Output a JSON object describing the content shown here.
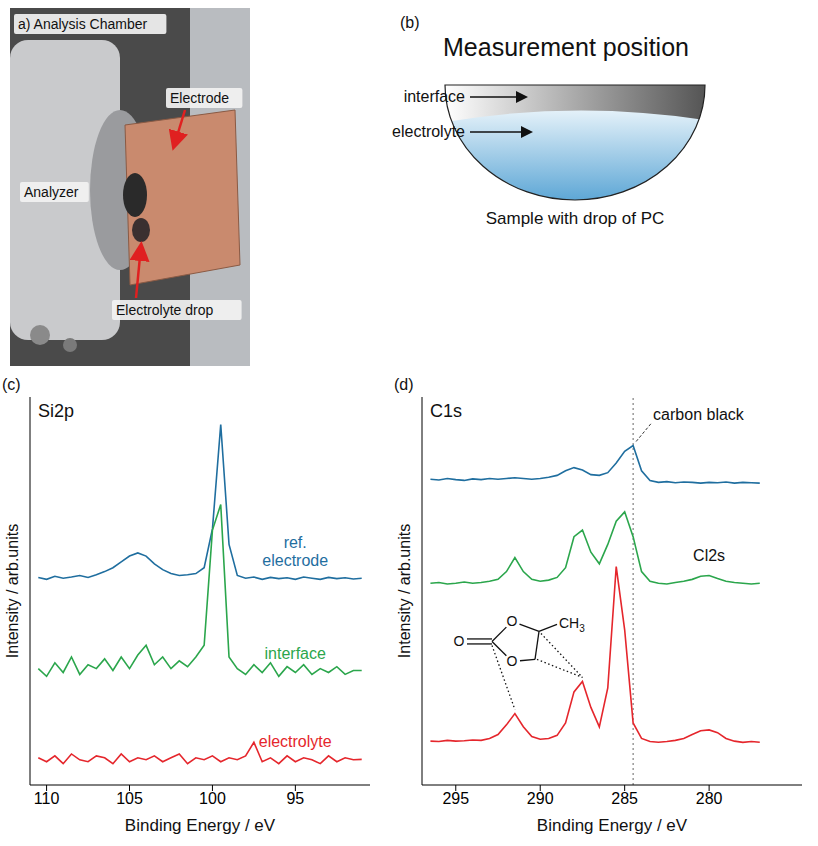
{
  "panel_a": {
    "title": "a) Analysis Chamber",
    "labels": {
      "electrode": "Electrode",
      "analyzer": "Analyzer",
      "electrolyte_drop": "Electrolyte drop"
    }
  },
  "panel_b": {
    "letter": "(b)",
    "title": "Measurement position",
    "labels": [
      "interface",
      "electrolyte"
    ],
    "caption": "Sample with drop of PC"
  },
  "chart_data": [
    {
      "panel": "(c)",
      "type": "line",
      "title": "Si2p",
      "x_label": "Binding Energy / eV",
      "y_label": "Intensity / arb.units",
      "tick_labels": "x",
      "xlim": [
        111,
        90.5
      ],
      "xticks": [
        110,
        105,
        100,
        95
      ],
      "ylim": [
        0,
        10
      ],
      "x": [
        110.5,
        110,
        109.5,
        109,
        108.5,
        108,
        107.5,
        107,
        106.5,
        106,
        105.5,
        105,
        104.5,
        104,
        103.5,
        103,
        102.5,
        102,
        101.5,
        101,
        100.5,
        100,
        99.5,
        99,
        98.5,
        98,
        97.5,
        97,
        96.5,
        96,
        95.5,
        95,
        94.5,
        94,
        93.5,
        93,
        92.5,
        92,
        91.5,
        91
      ],
      "series": [
        {
          "name": "ref. electrode",
          "color": "#1f6e9f",
          "values": [
            5.35,
            5.3,
            5.38,
            5.33,
            5.36,
            5.4,
            5.35,
            5.42,
            5.5,
            5.6,
            5.75,
            5.9,
            5.98,
            5.9,
            5.7,
            5.55,
            5.45,
            5.4,
            5.42,
            5.45,
            5.6,
            6.6,
            9.29,
            6.2,
            5.4,
            5.33,
            5.36,
            5.3,
            5.35,
            5.32,
            5.34,
            5.3,
            5.36,
            5.33,
            5.3,
            5.35,
            5.32,
            5.34,
            5.31,
            5.33
          ]
        },
        {
          "name": "interface",
          "color": "#2ba64c",
          "values": [
            3.0,
            2.8,
            3.15,
            2.9,
            3.3,
            2.85,
            3.1,
            3.0,
            3.25,
            2.95,
            3.3,
            3.0,
            3.35,
            3.6,
            3.1,
            3.3,
            3.0,
            3.2,
            3.05,
            3.3,
            3.6,
            6.57,
            7.23,
            3.3,
            3.0,
            2.85,
            3.1,
            2.9,
            3.15,
            2.8,
            3.05,
            2.9,
            3.1,
            2.85,
            3.0,
            2.9,
            3.05,
            2.85,
            2.95,
            2.95
          ]
        },
        {
          "name": "electrolyte",
          "color": "#e5262c",
          "values": [
            0.7,
            0.6,
            0.75,
            0.55,
            0.8,
            0.65,
            0.6,
            0.75,
            0.7,
            0.55,
            0.8,
            0.6,
            0.7,
            0.65,
            0.75,
            0.6,
            0.7,
            0.8,
            0.55,
            0.7,
            0.65,
            0.75,
            0.6,
            0.7,
            0.65,
            0.75,
            1.1,
            0.6,
            0.7,
            0.55,
            0.75,
            0.6,
            0.7,
            0.65,
            0.55,
            0.75,
            0.6,
            0.7,
            0.65,
            0.66
          ]
        }
      ]
    },
    {
      "panel": "(d)",
      "type": "line",
      "title": "C1s",
      "x_label": "Binding Energy / eV",
      "y_label": "Intensity / arb.units",
      "tick_labels": "x",
      "xlim": [
        297,
        274.5
      ],
      "xticks": [
        295,
        290,
        285,
        280
      ],
      "ylim": [
        0,
        10
      ],
      "reference_x": 284.5,
      "reference_label": "carbon black",
      "annotations": [
        "Cl2s"
      ],
      "molecule": [
        "O",
        "O",
        "O",
        "CH3"
      ],
      "x": [
        296.5,
        296,
        295.5,
        295,
        294.5,
        294,
        293.5,
        293,
        292.5,
        292,
        291.5,
        291,
        290.5,
        290,
        289.5,
        289,
        288.5,
        288,
        287.5,
        287,
        286.5,
        286,
        285.5,
        285,
        284.5,
        284,
        283.5,
        283,
        282.5,
        282,
        281.5,
        281,
        280.5,
        280,
        279.5,
        279,
        278.5,
        278,
        277.5,
        277
      ],
      "series": [
        {
          "color": "#1f6e9f",
          "values": [
            7.88,
            7.86,
            7.9,
            7.87,
            7.85,
            7.89,
            7.87,
            7.9,
            7.88,
            7.9,
            7.92,
            7.9,
            7.88,
            7.9,
            7.93,
            7.98,
            8.1,
            8.18,
            8.12,
            8.0,
            7.98,
            8.05,
            8.3,
            8.6,
            8.75,
            8.1,
            7.85,
            7.8,
            7.82,
            7.79,
            7.81,
            7.8,
            7.78,
            7.8,
            7.79,
            7.81,
            7.78,
            7.8,
            7.79,
            7.78
          ]
        },
        {
          "color": "#2ba64c",
          "values": [
            5.2,
            5.22,
            5.18,
            5.2,
            5.23,
            5.2,
            5.22,
            5.25,
            5.3,
            5.5,
            5.86,
            5.5,
            5.3,
            5.25,
            5.28,
            5.35,
            5.6,
            6.4,
            6.57,
            6.0,
            5.7,
            6.2,
            6.8,
            7.04,
            6.4,
            5.5,
            5.25,
            5.2,
            5.18,
            5.22,
            5.25,
            5.3,
            5.38,
            5.4,
            5.32,
            5.25,
            5.22,
            5.2,
            5.18,
            5.2
          ]
        },
        {
          "color": "#e5262c",
          "values": [
            1.13,
            1.12,
            1.15,
            1.13,
            1.14,
            1.16,
            1.15,
            1.2,
            1.3,
            1.55,
            1.84,
            1.5,
            1.25,
            1.18,
            1.2,
            1.28,
            1.6,
            2.4,
            2.67,
            2.0,
            1.5,
            2.5,
            5.63,
            4.0,
            1.6,
            1.2,
            1.12,
            1.1,
            1.12,
            1.15,
            1.2,
            1.3,
            1.4,
            1.42,
            1.35,
            1.2,
            1.13,
            1.1,
            1.12,
            1.1
          ]
        }
      ]
    }
  ]
}
